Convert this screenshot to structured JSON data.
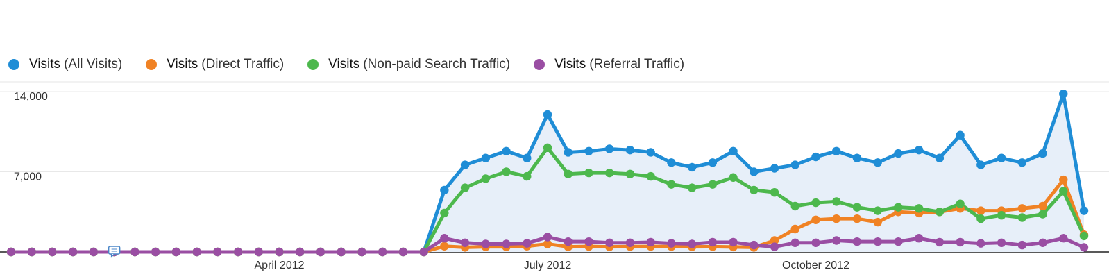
{
  "legend": [
    {
      "metric": "Visits",
      "segment": "(All Visits)",
      "color": "#1f8dd6"
    },
    {
      "metric": "Visits",
      "segment": "(Direct Traffic)",
      "color": "#f08224"
    },
    {
      "metric": "Visits",
      "segment": "(Non-paid Search Traffic)",
      "color": "#4db84d"
    },
    {
      "metric": "Visits",
      "segment": "(Referral Traffic)",
      "color": "#9a4ea3"
    }
  ],
  "annotation_icon": "comment-icon",
  "chart_data": {
    "type": "line",
    "title": "",
    "xlabel": "",
    "ylabel": "",
    "ylim": [
      0,
      14000
    ],
    "yticks": [
      7000,
      14000
    ],
    "ytick_labels": [
      "7,000",
      "14,000"
    ],
    "x_month_labels": [
      {
        "label": "April 2012",
        "index": 13
      },
      {
        "label": "July 2012",
        "index": 26
      },
      {
        "label": "October 2012",
        "index": 39
      }
    ],
    "annotation_index": 5,
    "grid": true,
    "point_count": 53,
    "series": [
      {
        "name": "Visits (All Visits)",
        "color": "#1f8dd6",
        "fill": true,
        "values": [
          0,
          0,
          0,
          0,
          0,
          0,
          0,
          0,
          0,
          0,
          0,
          0,
          0,
          0,
          0,
          0,
          0,
          0,
          0,
          0,
          0,
          5400,
          7600,
          8200,
          8800,
          8200,
          12000,
          8700,
          8800,
          9000,
          8900,
          8700,
          7800,
          7400,
          7800,
          8800,
          7000,
          7300,
          7600,
          8300,
          8800,
          8200,
          7800,
          8600,
          8900,
          8200,
          10200,
          7600,
          8200,
          7800,
          8600,
          13800,
          3600
        ]
      },
      {
        "name": "Visits (Direct Traffic)",
        "color": "#f08224",
        "fill": false,
        "values": [
          0,
          0,
          0,
          0,
          0,
          0,
          0,
          0,
          0,
          0,
          0,
          0,
          0,
          0,
          0,
          0,
          0,
          0,
          0,
          0,
          0,
          500,
          400,
          450,
          450,
          500,
          700,
          450,
          480,
          450,
          470,
          480,
          470,
          450,
          460,
          430,
          400,
          1000,
          2000,
          2800,
          2900,
          2900,
          2600,
          3500,
          3400,
          3500,
          3800,
          3600,
          3600,
          3800,
          4000,
          6300,
          1500
        ]
      },
      {
        "name": "Visits (Non-paid Search Traffic)",
        "color": "#4db84d",
        "fill": false,
        "values": [
          0,
          0,
          0,
          0,
          0,
          0,
          0,
          0,
          0,
          0,
          0,
          0,
          0,
          0,
          0,
          0,
          0,
          0,
          0,
          0,
          0,
          3400,
          5600,
          6400,
          7000,
          6600,
          9100,
          6800,
          6900,
          6900,
          6800,
          6600,
          5900,
          5600,
          5900,
          6500,
          5400,
          5200,
          4000,
          4300,
          4400,
          3900,
          3600,
          3900,
          3800,
          3500,
          4200,
          2900,
          3200,
          3000,
          3300,
          5300,
          1400
        ]
      },
      {
        "name": "Visits (Referral Traffic)",
        "color": "#9a4ea3",
        "fill": false,
        "values": [
          0,
          0,
          0,
          0,
          0,
          0,
          0,
          0,
          0,
          0,
          0,
          0,
          0,
          0,
          0,
          0,
          0,
          0,
          0,
          0,
          0,
          1200,
          800,
          700,
          700,
          750,
          1300,
          900,
          900,
          800,
          800,
          850,
          750,
          700,
          850,
          850,
          600,
          450,
          800,
          800,
          1000,
          900,
          900,
          900,
          1200,
          850,
          850,
          750,
          800,
          600,
          800,
          1200,
          400
        ]
      }
    ]
  }
}
